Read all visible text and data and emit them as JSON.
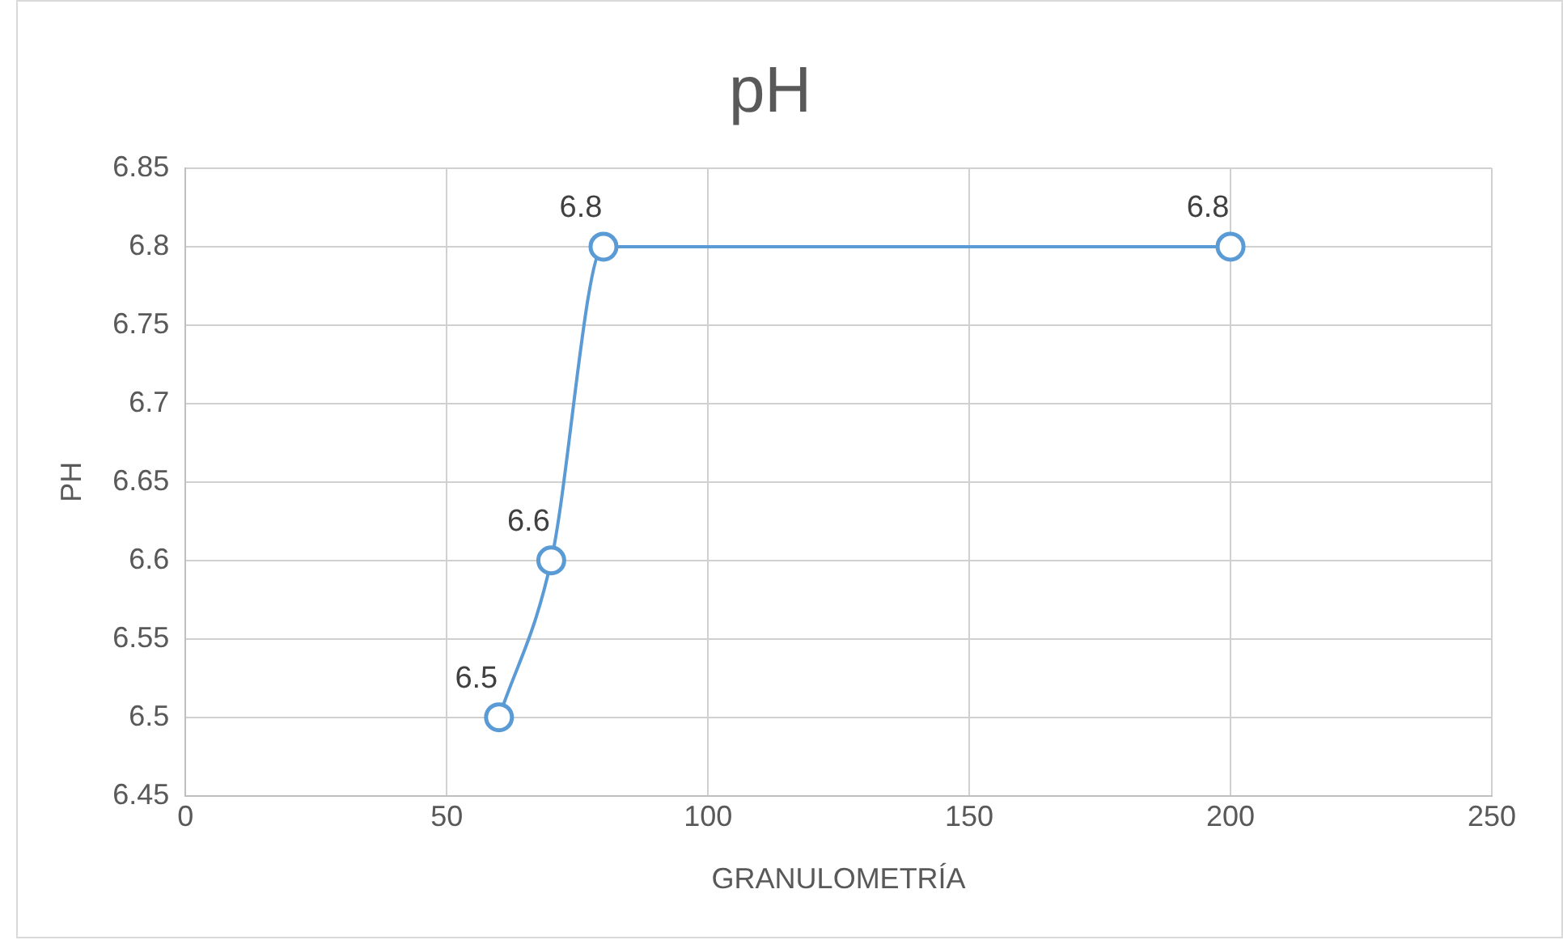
{
  "chart_data": {
    "type": "scatter",
    "title": "pH",
    "xlabel": "GRANULOMETRÍA",
    "ylabel": "PH",
    "x": [
      60,
      70,
      80,
      200
    ],
    "series": [
      {
        "color": "#5b9bd5",
        "values": [
          6.5,
          6.6,
          6.8,
          6.8
        ]
      }
    ],
    "xlim": [
      0,
      250
    ],
    "xticks": [
      0,
      50,
      100,
      150,
      200,
      250
    ],
    "ylim": [
      6.45,
      6.85
    ],
    "yticks": [
      6.45,
      6.5,
      6.55,
      6.6,
      6.65,
      6.7,
      6.75,
      6.8,
      6.85
    ],
    "grid": true,
    "legend": false,
    "marker": "circle",
    "line_style": "solid",
    "data_labels": true
  }
}
